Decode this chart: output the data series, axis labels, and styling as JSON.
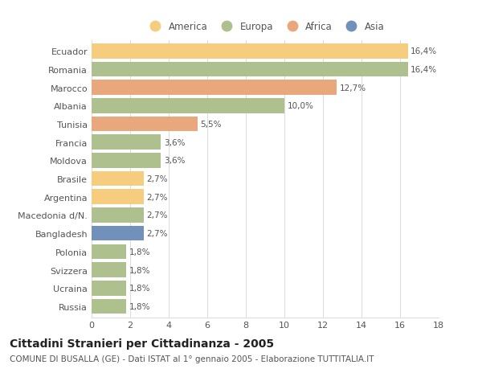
{
  "categories": [
    "Russia",
    "Ucraina",
    "Svizzera",
    "Polonia",
    "Bangladesh",
    "Macedonia d/N.",
    "Argentina",
    "Brasile",
    "Moldova",
    "Francia",
    "Tunisia",
    "Albania",
    "Marocco",
    "Romania",
    "Ecuador"
  ],
  "values": [
    1.8,
    1.8,
    1.8,
    1.8,
    2.7,
    2.7,
    2.7,
    2.7,
    3.6,
    3.6,
    5.5,
    10.0,
    12.7,
    16.4,
    16.4
  ],
  "labels": [
    "1,8%",
    "1,8%",
    "1,8%",
    "1,8%",
    "2,7%",
    "2,7%",
    "2,7%",
    "2,7%",
    "3,6%",
    "3,6%",
    "5,5%",
    "10,0%",
    "12,7%",
    "16,4%",
    "16,4%"
  ],
  "colors": [
    "#afc08f",
    "#afc08f",
    "#afc08f",
    "#afc08f",
    "#7191bb",
    "#afc08f",
    "#f6cc7e",
    "#f6cc7e",
    "#afc08f",
    "#afc08f",
    "#e9a87c",
    "#afc08f",
    "#e9a87c",
    "#afc08f",
    "#f6cc7e"
  ],
  "legend": [
    {
      "label": "America",
      "color": "#f6cc7e"
    },
    {
      "label": "Europa",
      "color": "#afc08f"
    },
    {
      "label": "Africa",
      "color": "#e9a87c"
    },
    {
      "label": "Asia",
      "color": "#7191bb"
    }
  ],
  "title": "Cittadini Stranieri per Cittadinanza - 2005",
  "subtitle": "COMUNE DI BUSALLA (GE) - Dati ISTAT al 1° gennaio 2005 - Elaborazione TUTTITALIA.IT",
  "xlim": [
    0,
    18
  ],
  "xticks": [
    0,
    2,
    4,
    6,
    8,
    10,
    12,
    14,
    16,
    18
  ],
  "bar_height": 0.82,
  "background_color": "#ffffff",
  "grid_color": "#dddddd",
  "text_color": "#555555",
  "title_fontsize": 10,
  "subtitle_fontsize": 7.5,
  "tick_fontsize": 8,
  "label_fontsize": 7.5
}
